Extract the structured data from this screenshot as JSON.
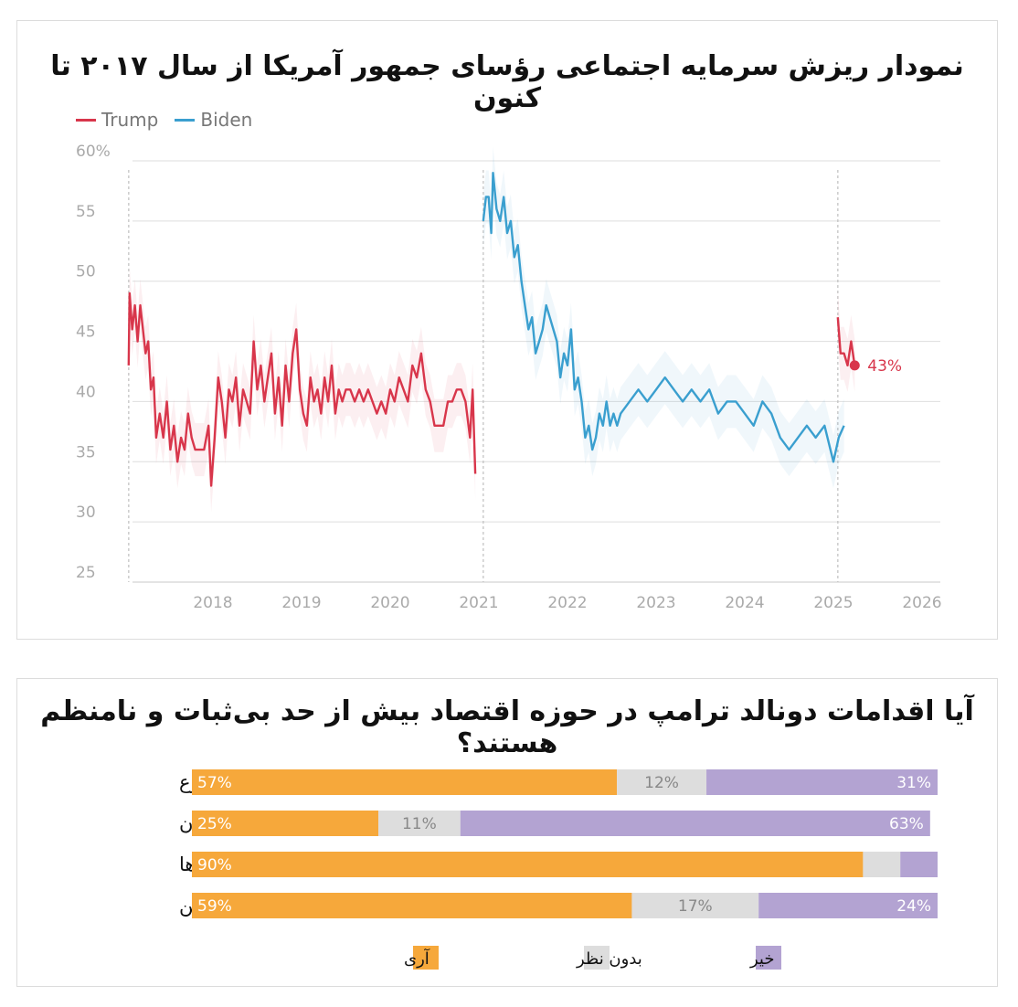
{
  "chart_data": [
    {
      "type": "line",
      "title": "نمودار ریزش سرمایه اجتماعی رؤسای جمهور آمریکا از سال ۲۰۱۷ تا کنون",
      "xlabel": "",
      "ylabel": "",
      "ylim": [
        25,
        60
      ],
      "xlim": [
        2017.0,
        2026.2
      ],
      "y_ticks": [
        "25",
        "30",
        "35",
        "40",
        "45",
        "50",
        "55",
        "60%"
      ],
      "x_ticks": [
        "2018",
        "2019",
        "2020",
        "2021",
        "2022",
        "2023",
        "2024",
        "2025",
        "2026"
      ],
      "grid": true,
      "legend": "top-left",
      "end_label": "43%",
      "series": [
        {
          "name": "Trump",
          "color": "#d8364b",
          "points": [
            [
              2017.05,
              43
            ],
            [
              2017.06,
              49
            ],
            [
              2017.09,
              46
            ],
            [
              2017.12,
              48
            ],
            [
              2017.15,
              45
            ],
            [
              2017.18,
              48
            ],
            [
              2017.21,
              46
            ],
            [
              2017.24,
              44
            ],
            [
              2017.27,
              45
            ],
            [
              2017.3,
              41
            ],
            [
              2017.33,
              42
            ],
            [
              2017.36,
              37
            ],
            [
              2017.4,
              39
            ],
            [
              2017.44,
              37
            ],
            [
              2017.48,
              40
            ],
            [
              2017.52,
              36
            ],
            [
              2017.56,
              38
            ],
            [
              2017.6,
              35
            ],
            [
              2017.64,
              37
            ],
            [
              2017.68,
              36
            ],
            [
              2017.72,
              39
            ],
            [
              2017.76,
              37
            ],
            [
              2017.8,
              36
            ],
            [
              2017.85,
              36
            ],
            [
              2017.9,
              36
            ],
            [
              2017.95,
              38
            ],
            [
              2017.98,
              33
            ],
            [
              2018.02,
              37
            ],
            [
              2018.06,
              42
            ],
            [
              2018.1,
              40
            ],
            [
              2018.14,
              37
            ],
            [
              2018.18,
              41
            ],
            [
              2018.22,
              40
            ],
            [
              2018.26,
              42
            ],
            [
              2018.3,
              38
            ],
            [
              2018.34,
              41
            ],
            [
              2018.38,
              40
            ],
            [
              2018.42,
              39
            ],
            [
              2018.46,
              45
            ],
            [
              2018.5,
              41
            ],
            [
              2018.54,
              43
            ],
            [
              2018.58,
              40
            ],
            [
              2018.62,
              42
            ],
            [
              2018.66,
              44
            ],
            [
              2018.7,
              39
            ],
            [
              2018.74,
              42
            ],
            [
              2018.78,
              38
            ],
            [
              2018.82,
              43
            ],
            [
              2018.86,
              40
            ],
            [
              2018.9,
              44
            ],
            [
              2018.94,
              46
            ],
            [
              2018.98,
              41
            ],
            [
              2019.02,
              39
            ],
            [
              2019.06,
              38
            ],
            [
              2019.1,
              42
            ],
            [
              2019.14,
              40
            ],
            [
              2019.18,
              41
            ],
            [
              2019.22,
              39
            ],
            [
              2019.26,
              42
            ],
            [
              2019.3,
              40
            ],
            [
              2019.34,
              43
            ],
            [
              2019.38,
              39
            ],
            [
              2019.42,
              41
            ],
            [
              2019.46,
              40
            ],
            [
              2019.5,
              41
            ],
            [
              2019.55,
              41
            ],
            [
              2019.6,
              40
            ],
            [
              2019.65,
              41
            ],
            [
              2019.7,
              40
            ],
            [
              2019.75,
              41
            ],
            [
              2019.8,
              40
            ],
            [
              2019.85,
              39
            ],
            [
              2019.9,
              40
            ],
            [
              2019.95,
              39
            ],
            [
              2020.0,
              41
            ],
            [
              2020.05,
              40
            ],
            [
              2020.1,
              42
            ],
            [
              2020.15,
              41
            ],
            [
              2020.2,
              40
            ],
            [
              2020.25,
              43
            ],
            [
              2020.3,
              42
            ],
            [
              2020.35,
              44
            ],
            [
              2020.4,
              41
            ],
            [
              2020.45,
              40
            ],
            [
              2020.5,
              38
            ],
            [
              2020.55,
              38
            ],
            [
              2020.6,
              38
            ],
            [
              2020.65,
              40
            ],
            [
              2020.7,
              40
            ],
            [
              2020.75,
              41
            ],
            [
              2020.8,
              41
            ],
            [
              2020.85,
              40
            ],
            [
              2020.9,
              37
            ],
            [
              2020.93,
              41
            ],
            [
              2020.96,
              34
            ]
          ]
        },
        {
          "name": "Biden",
          "color": "#3a9fcf",
          "points": [
            [
              2021.05,
              55
            ],
            [
              2021.08,
              57
            ],
            [
              2021.11,
              57
            ],
            [
              2021.14,
              54
            ],
            [
              2021.16,
              59
            ],
            [
              2021.2,
              56
            ],
            [
              2021.24,
              55
            ],
            [
              2021.28,
              57
            ],
            [
              2021.32,
              54
            ],
            [
              2021.36,
              55
            ],
            [
              2021.4,
              52
            ],
            [
              2021.44,
              53
            ],
            [
              2021.48,
              50
            ],
            [
              2021.52,
              48
            ],
            [
              2021.56,
              46
            ],
            [
              2021.6,
              47
            ],
            [
              2021.64,
              44
            ],
            [
              2021.68,
              45
            ],
            [
              2021.72,
              46
            ],
            [
              2021.76,
              48
            ],
            [
              2021.8,
              47
            ],
            [
              2021.84,
              46
            ],
            [
              2021.88,
              45
            ],
            [
              2021.92,
              42
            ],
            [
              2021.96,
              44
            ],
            [
              2022.0,
              43
            ],
            [
              2022.04,
              46
            ],
            [
              2022.08,
              41
            ],
            [
              2022.12,
              42
            ],
            [
              2022.16,
              40
            ],
            [
              2022.2,
              37
            ],
            [
              2022.24,
              38
            ],
            [
              2022.28,
              36
            ],
            [
              2022.32,
              37
            ],
            [
              2022.36,
              39
            ],
            [
              2022.4,
              38
            ],
            [
              2022.44,
              40
            ],
            [
              2022.48,
              38
            ],
            [
              2022.52,
              39
            ],
            [
              2022.56,
              38
            ],
            [
              2022.6,
              39
            ],
            [
              2022.7,
              40
            ],
            [
              2022.8,
              41
            ],
            [
              2022.9,
              40
            ],
            [
              2023.0,
              41
            ],
            [
              2023.1,
              42
            ],
            [
              2023.2,
              41
            ],
            [
              2023.3,
              40
            ],
            [
              2023.4,
              41
            ],
            [
              2023.5,
              40
            ],
            [
              2023.6,
              41
            ],
            [
              2023.7,
              39
            ],
            [
              2023.8,
              40
            ],
            [
              2023.9,
              40
            ],
            [
              2024.0,
              39
            ],
            [
              2024.1,
              38
            ],
            [
              2024.2,
              40
            ],
            [
              2024.3,
              39
            ],
            [
              2024.4,
              37
            ],
            [
              2024.5,
              36
            ],
            [
              2024.6,
              37
            ],
            [
              2024.7,
              38
            ],
            [
              2024.8,
              37
            ],
            [
              2024.9,
              38
            ],
            [
              2025.0,
              35
            ],
            [
              2025.06,
              37
            ],
            [
              2025.12,
              38
            ]
          ]
        },
        {
          "name": "",
          "color": "#d8364b",
          "points": [
            [
              2025.05,
              47
            ],
            [
              2025.08,
              44
            ],
            [
              2025.12,
              44
            ],
            [
              2025.16,
              43
            ],
            [
              2025.2,
              45
            ],
            [
              2025.24,
              43
            ]
          ]
        }
      ]
    },
    {
      "type": "bar",
      "title": "آیا اقدامات دونالد ترامپ در حوزه اقتصاد بیش از حد بی‌ثبات و نامنظم هستند؟",
      "stacked": true,
      "orientation": "horizontal",
      "categories": [
        "مجموع",
        "جمهوری‌خواهان",
        "دموکرات‌ها",
        "سایرین"
      ],
      "series": [
        {
          "name": "آری",
          "color": "#f6a83b",
          "values": [
            57,
            25,
            90,
            59
          ],
          "labels": [
            "57%",
            "25%",
            "90%",
            "59%"
          ]
        },
        {
          "name": "بدون نظر",
          "color": "#dddddd",
          "values": [
            12,
            11,
            5,
            17
          ],
          "labels": [
            "12%",
            "11%",
            "",
            "17%"
          ]
        },
        {
          "name": "خیر",
          "color": "#b3a3d2",
          "values": [
            31,
            63,
            5,
            24
          ],
          "labels": [
            "31%",
            "63%",
            "",
            "24%"
          ]
        }
      ],
      "legend": "bottom"
    }
  ]
}
